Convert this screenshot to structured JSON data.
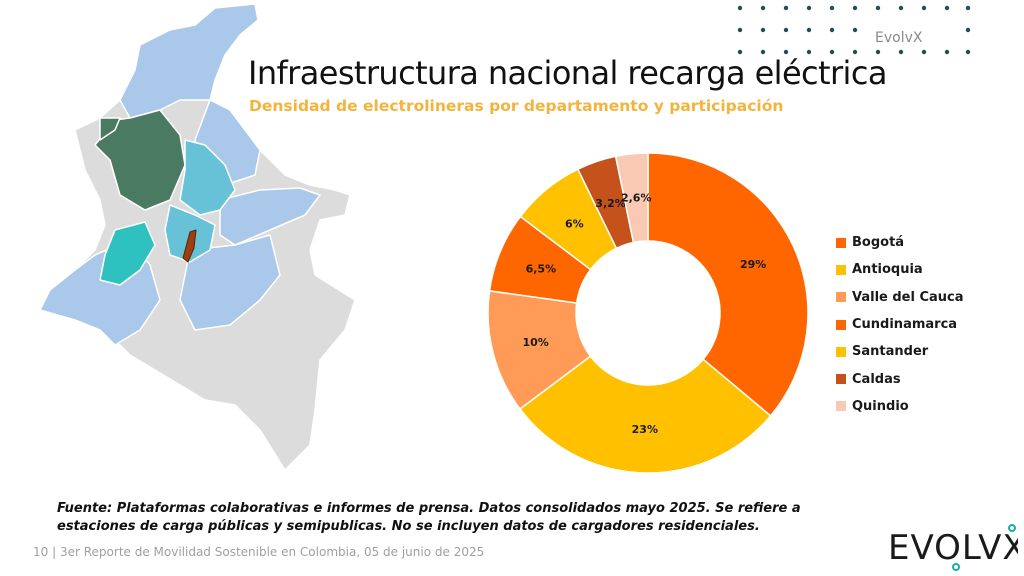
{
  "brand_top": "EvolvX",
  "title": "Infraestructura nacional recarga eléctrica",
  "subtitle": "Densidad de electrolineras por departamento y participación",
  "chart_data": {
    "type": "pie",
    "donut": true,
    "categories": [
      "Bogotá",
      "Antioquia",
      "Valle del Cauca",
      "Cundinamarca",
      "Santander",
      "Caldas",
      "Quindio"
    ],
    "values": [
      29,
      23,
      10,
      6.5,
      6,
      3.2,
      2.6
    ],
    "data_labels": [
      "29%",
      "23%",
      "10%",
      "6,5%",
      "6%",
      "3,2%",
      "2,6%"
    ],
    "colors": [
      "#ff6600",
      "#ffc000",
      "#ff9b57",
      "#fe6600",
      "#ffc100",
      "#c4521a",
      "#f9c9b4"
    ],
    "legend_position": "right"
  },
  "legend": [
    {
      "label": "Bogotá",
      "color": "#ff6600"
    },
    {
      "label": "Antioquia",
      "color": "#ffc000"
    },
    {
      "label": "Valle del Cauca",
      "color": "#ff9b57"
    },
    {
      "label": "Cundinamarca",
      "color": "#fe6600"
    },
    {
      "label": "Santander",
      "color": "#ffc100"
    },
    {
      "label": "Caldas",
      "color": "#c4521a"
    },
    {
      "label": "Quindio",
      "color": "#f9c9b4"
    }
  ],
  "source_note": "Fuente: Plataformas colaborativas e informes de prensa. Datos consolidados mayo 2025. Se refiere a estaciones de carga públicas y semipublicas. No se incluyen datos de cargadores residenciales.",
  "footer": {
    "page": "10",
    "separator": "|",
    "text": "3er Reporte de Movilidad Sostenible en Colombia, 05 de junio de 2025"
  },
  "logo_text": "EVOLVX",
  "colors": {
    "accent_orange": "#ff6600",
    "subtitle_gold": "#f2b43c",
    "brand_teal": "#1e5f5f",
    "logo_green": "#16b2a5"
  }
}
